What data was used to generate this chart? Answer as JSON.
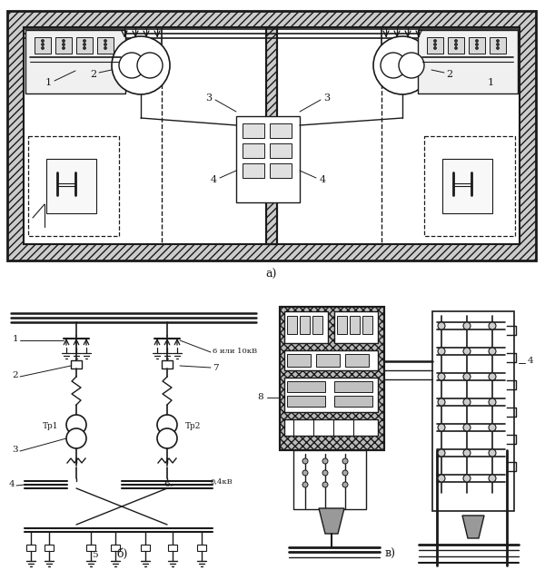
{
  "bg_color": "#ffffff",
  "line_color": "#1a1a1a",
  "fig_width": 6.0,
  "fig_height": 6.28,
  "dpi": 100,
  "label_a": "а)",
  "label_b": "б)",
  "label_v": "в)"
}
